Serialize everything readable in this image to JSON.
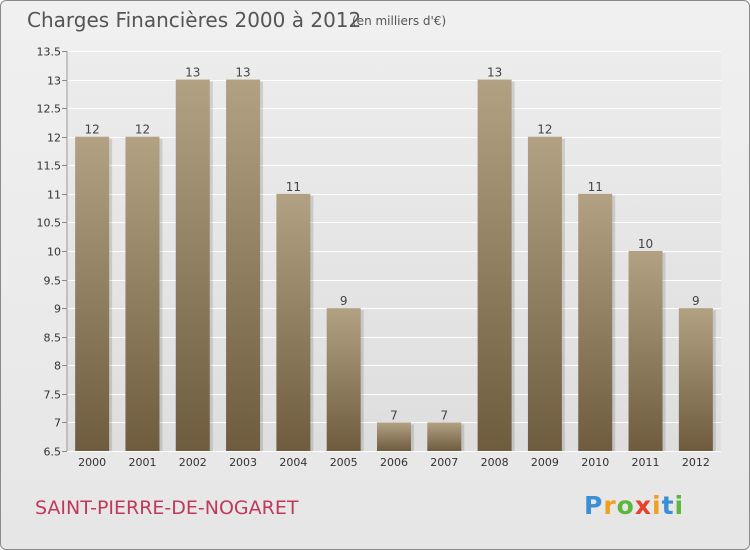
{
  "header": {
    "title": "Charges Financières 2000 à 2012",
    "subtitle": "(en milliers d'€)"
  },
  "footer": {
    "commune": "SAINT-PIERRE-DE-NOGARET",
    "logo": "Proxiti",
    "logo_colors": [
      "#3a8fd6",
      "#f0a020",
      "#5cb83a",
      "#e8402c",
      "#f0a020",
      "#3a8fd6",
      "#5cb83a"
    ]
  },
  "chart_data": {
    "type": "bar",
    "categories": [
      "2000",
      "2001",
      "2002",
      "2003",
      "2004",
      "2005",
      "2006",
      "2007",
      "2008",
      "2009",
      "2010",
      "2011",
      "2012"
    ],
    "values": [
      12,
      12,
      13,
      13,
      11,
      9,
      7,
      7,
      13,
      12,
      11,
      10,
      9
    ],
    "value_labels": [
      "12",
      "12",
      "13",
      "13",
      "11",
      "9",
      "7",
      "7",
      "13",
      "12",
      "11",
      "10",
      "9"
    ],
    "ylim": [
      6.5,
      13.5
    ],
    "yticks": [
      6.5,
      7,
      7.5,
      8,
      8.5,
      9,
      9.5,
      10,
      10.5,
      11,
      11.5,
      12,
      12.5,
      13,
      13.5
    ],
    "ytick_labels": [
      "6.5",
      "7",
      "7.5",
      "8",
      "8.5",
      "9",
      "9.5",
      "10",
      "10.5",
      "11",
      "11.5",
      "12",
      "12.5",
      "13",
      "13.5"
    ],
    "bar_color_top": "#b2a182",
    "bar_color_bottom": "#6f5c3f",
    "grid": true,
    "xlabel": "",
    "ylabel": ""
  }
}
